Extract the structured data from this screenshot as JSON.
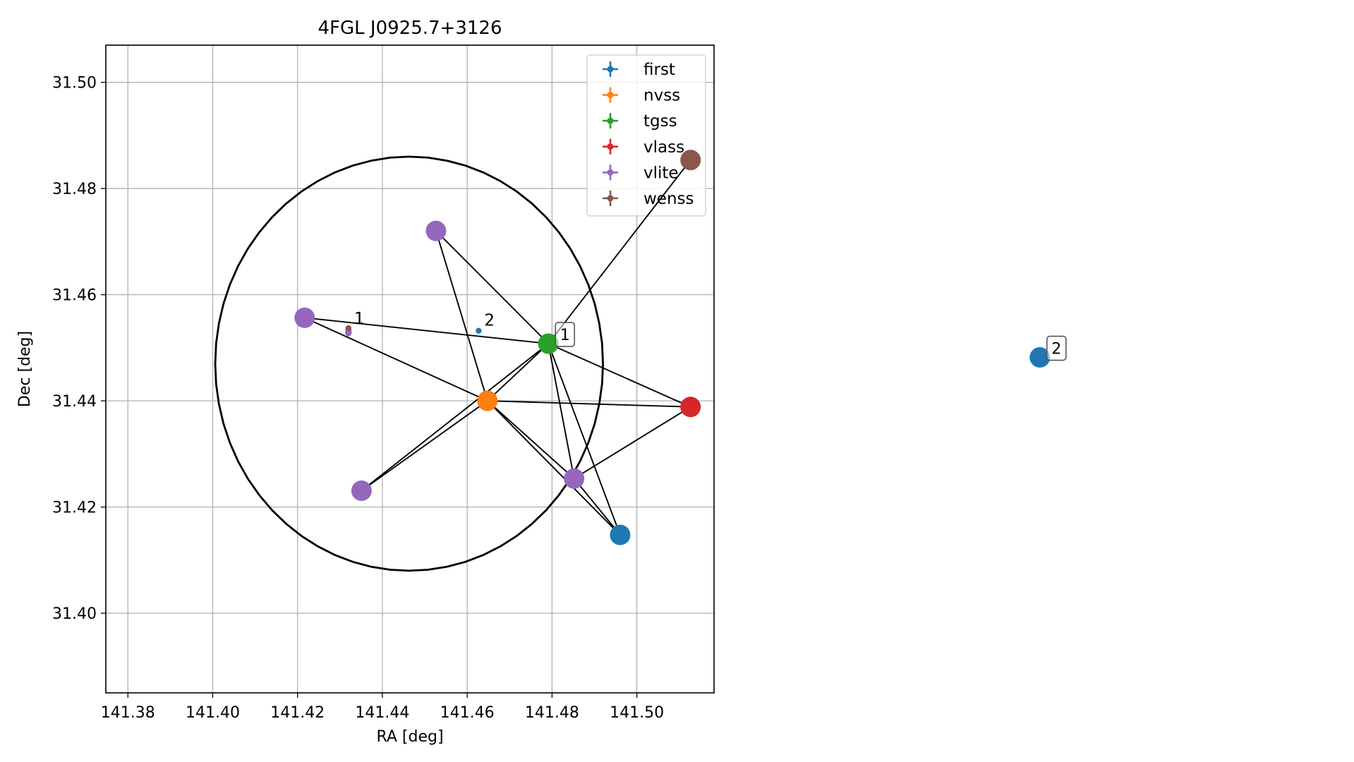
{
  "chart_data": [
    {
      "type": "scatter",
      "title": "4FGL J0925.7+3126",
      "xlabel": "RA [deg]",
      "ylabel": "Dec [deg]",
      "xlim": [
        141.3748,
        141.5182
      ],
      "ylim": [
        31.385,
        31.507
      ],
      "xticks": [
        "141.38",
        "141.40",
        "141.42",
        "141.44",
        "141.46",
        "141.48",
        "141.50"
      ],
      "yticks": [
        "31.40",
        "31.42",
        "31.44",
        "31.46",
        "31.48",
        "31.50"
      ],
      "grid": true,
      "legend_position": "top-right",
      "circle": {
        "center": [
          141.4463,
          31.447
        ],
        "radius_deg": 0.039,
        "color": "#000000"
      },
      "series": [
        {
          "name": "first",
          "color": "#1f77b4",
          "points": [
            [
              141.4627,
              31.4532
            ]
          ]
        },
        {
          "name": "nvss",
          "color": "#ff7f0e",
          "points": [
            [
              141.432,
              31.4534
            ]
          ]
        },
        {
          "name": "tgss",
          "color": "#2ca02c",
          "points": [
            [
              141.432,
              31.4534
            ]
          ]
        },
        {
          "name": "vlass",
          "color": "#d62728",
          "points": [
            [
              141.432,
              31.4534
            ]
          ]
        },
        {
          "name": "vlite",
          "color": "#9467bd",
          "points": [
            [
              141.432,
              31.4529
            ],
            [
              141.4319,
              31.4528
            ],
            [
              141.4321,
              31.453
            ],
            [
              141.432,
              31.4527
            ]
          ]
        },
        {
          "name": "wenss",
          "color": "#8c564b",
          "points": [
            [
              141.432,
              31.4537
            ]
          ]
        }
      ],
      "annotations": [
        {
          "text": "1",
          "x": 141.432,
          "y": 31.4537
        },
        {
          "text": "2",
          "x": 141.4627,
          "y": 31.4534
        }
      ]
    },
    {
      "type": "network",
      "nodes": [
        {
          "id": "tgss",
          "color": "#2ca02c",
          "fx": 0.405,
          "fy": 0.451
        },
        {
          "id": "nvss",
          "color": "#ff7f0e",
          "fx": 0.36,
          "fy": 0.526
        },
        {
          "id": "vlass",
          "color": "#d62728",
          "fx": 0.51,
          "fy": 0.534
        },
        {
          "id": "wenss",
          "color": "#8c564b",
          "fx": 0.51,
          "fy": 0.21
        },
        {
          "id": "first-1",
          "color": "#1f77b4",
          "fx": 0.458,
          "fy": 0.702
        },
        {
          "id": "vlite-a",
          "color": "#9467bd",
          "fx": 0.322,
          "fy": 0.303
        },
        {
          "id": "vlite-b",
          "color": "#9467bd",
          "fx": 0.225,
          "fy": 0.417
        },
        {
          "id": "vlite-c",
          "color": "#9467bd",
          "fx": 0.267,
          "fy": 0.644
        },
        {
          "id": "vlite-d",
          "color": "#9467bd",
          "fx": 0.424,
          "fy": 0.628
        },
        {
          "id": "first-2",
          "color": "#1f77b4",
          "fx": 0.768,
          "fy": 0.469
        }
      ],
      "edges": [
        [
          "tgss",
          "wenss"
        ],
        [
          "tgss",
          "vlite-a"
        ],
        [
          "tgss",
          "vlite-b"
        ],
        [
          "tgss",
          "vlass"
        ],
        [
          "tgss",
          "vlite-c"
        ],
        [
          "tgss",
          "vlite-d"
        ],
        [
          "tgss",
          "first-1"
        ],
        [
          "tgss",
          "nvss"
        ],
        [
          "nvss",
          "vlite-a"
        ],
        [
          "nvss",
          "vlite-b"
        ],
        [
          "nvss",
          "vlass"
        ],
        [
          "nvss",
          "vlite-c"
        ],
        [
          "nvss",
          "vlite-d"
        ],
        [
          "nvss",
          "first-1"
        ],
        [
          "vlass",
          "vlite-d"
        ],
        [
          "vlite-d",
          "first-1"
        ]
      ],
      "labels": [
        {
          "text": "1",
          "node": "tgss"
        },
        {
          "text": "2",
          "node": "first-2"
        }
      ]
    }
  ]
}
